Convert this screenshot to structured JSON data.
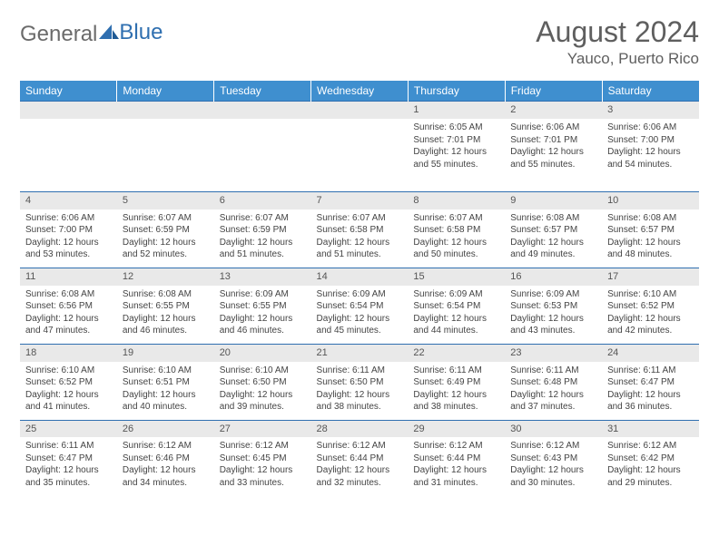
{
  "logo": {
    "text_gray": "General",
    "text_blue": "Blue"
  },
  "header": {
    "month": "August 2024",
    "location": "Yauco, Puerto Rico"
  },
  "colors": {
    "header_bg": "#3f8fcf",
    "header_text": "#ffffff",
    "cell_border": "#2f6fb0",
    "daynum_bg": "#e9e9e9",
    "body_text": "#444444",
    "logo_gray": "#6b6b6b",
    "logo_blue": "#2f6fb0",
    "title_color": "#5f5f5f"
  },
  "day_names": [
    "Sunday",
    "Monday",
    "Tuesday",
    "Wednesday",
    "Thursday",
    "Friday",
    "Saturday"
  ],
  "weeks": [
    [
      {
        "n": "",
        "sr": "",
        "ss": "",
        "dl": ""
      },
      {
        "n": "",
        "sr": "",
        "ss": "",
        "dl": ""
      },
      {
        "n": "",
        "sr": "",
        "ss": "",
        "dl": ""
      },
      {
        "n": "",
        "sr": "",
        "ss": "",
        "dl": ""
      },
      {
        "n": "1",
        "sr": "Sunrise: 6:05 AM",
        "ss": "Sunset: 7:01 PM",
        "dl": "Daylight: 12 hours and 55 minutes."
      },
      {
        "n": "2",
        "sr": "Sunrise: 6:06 AM",
        "ss": "Sunset: 7:01 PM",
        "dl": "Daylight: 12 hours and 55 minutes."
      },
      {
        "n": "3",
        "sr": "Sunrise: 6:06 AM",
        "ss": "Sunset: 7:00 PM",
        "dl": "Daylight: 12 hours and 54 minutes."
      }
    ],
    [
      {
        "n": "4",
        "sr": "Sunrise: 6:06 AM",
        "ss": "Sunset: 7:00 PM",
        "dl": "Daylight: 12 hours and 53 minutes."
      },
      {
        "n": "5",
        "sr": "Sunrise: 6:07 AM",
        "ss": "Sunset: 6:59 PM",
        "dl": "Daylight: 12 hours and 52 minutes."
      },
      {
        "n": "6",
        "sr": "Sunrise: 6:07 AM",
        "ss": "Sunset: 6:59 PM",
        "dl": "Daylight: 12 hours and 51 minutes."
      },
      {
        "n": "7",
        "sr": "Sunrise: 6:07 AM",
        "ss": "Sunset: 6:58 PM",
        "dl": "Daylight: 12 hours and 51 minutes."
      },
      {
        "n": "8",
        "sr": "Sunrise: 6:07 AM",
        "ss": "Sunset: 6:58 PM",
        "dl": "Daylight: 12 hours and 50 minutes."
      },
      {
        "n": "9",
        "sr": "Sunrise: 6:08 AM",
        "ss": "Sunset: 6:57 PM",
        "dl": "Daylight: 12 hours and 49 minutes."
      },
      {
        "n": "10",
        "sr": "Sunrise: 6:08 AM",
        "ss": "Sunset: 6:57 PM",
        "dl": "Daylight: 12 hours and 48 minutes."
      }
    ],
    [
      {
        "n": "11",
        "sr": "Sunrise: 6:08 AM",
        "ss": "Sunset: 6:56 PM",
        "dl": "Daylight: 12 hours and 47 minutes."
      },
      {
        "n": "12",
        "sr": "Sunrise: 6:08 AM",
        "ss": "Sunset: 6:55 PM",
        "dl": "Daylight: 12 hours and 46 minutes."
      },
      {
        "n": "13",
        "sr": "Sunrise: 6:09 AM",
        "ss": "Sunset: 6:55 PM",
        "dl": "Daylight: 12 hours and 46 minutes."
      },
      {
        "n": "14",
        "sr": "Sunrise: 6:09 AM",
        "ss": "Sunset: 6:54 PM",
        "dl": "Daylight: 12 hours and 45 minutes."
      },
      {
        "n": "15",
        "sr": "Sunrise: 6:09 AM",
        "ss": "Sunset: 6:54 PM",
        "dl": "Daylight: 12 hours and 44 minutes."
      },
      {
        "n": "16",
        "sr": "Sunrise: 6:09 AM",
        "ss": "Sunset: 6:53 PM",
        "dl": "Daylight: 12 hours and 43 minutes."
      },
      {
        "n": "17",
        "sr": "Sunrise: 6:10 AM",
        "ss": "Sunset: 6:52 PM",
        "dl": "Daylight: 12 hours and 42 minutes."
      }
    ],
    [
      {
        "n": "18",
        "sr": "Sunrise: 6:10 AM",
        "ss": "Sunset: 6:52 PM",
        "dl": "Daylight: 12 hours and 41 minutes."
      },
      {
        "n": "19",
        "sr": "Sunrise: 6:10 AM",
        "ss": "Sunset: 6:51 PM",
        "dl": "Daylight: 12 hours and 40 minutes."
      },
      {
        "n": "20",
        "sr": "Sunrise: 6:10 AM",
        "ss": "Sunset: 6:50 PM",
        "dl": "Daylight: 12 hours and 39 minutes."
      },
      {
        "n": "21",
        "sr": "Sunrise: 6:11 AM",
        "ss": "Sunset: 6:50 PM",
        "dl": "Daylight: 12 hours and 38 minutes."
      },
      {
        "n": "22",
        "sr": "Sunrise: 6:11 AM",
        "ss": "Sunset: 6:49 PM",
        "dl": "Daylight: 12 hours and 38 minutes."
      },
      {
        "n": "23",
        "sr": "Sunrise: 6:11 AM",
        "ss": "Sunset: 6:48 PM",
        "dl": "Daylight: 12 hours and 37 minutes."
      },
      {
        "n": "24",
        "sr": "Sunrise: 6:11 AM",
        "ss": "Sunset: 6:47 PM",
        "dl": "Daylight: 12 hours and 36 minutes."
      }
    ],
    [
      {
        "n": "25",
        "sr": "Sunrise: 6:11 AM",
        "ss": "Sunset: 6:47 PM",
        "dl": "Daylight: 12 hours and 35 minutes."
      },
      {
        "n": "26",
        "sr": "Sunrise: 6:12 AM",
        "ss": "Sunset: 6:46 PM",
        "dl": "Daylight: 12 hours and 34 minutes."
      },
      {
        "n": "27",
        "sr": "Sunrise: 6:12 AM",
        "ss": "Sunset: 6:45 PM",
        "dl": "Daylight: 12 hours and 33 minutes."
      },
      {
        "n": "28",
        "sr": "Sunrise: 6:12 AM",
        "ss": "Sunset: 6:44 PM",
        "dl": "Daylight: 12 hours and 32 minutes."
      },
      {
        "n": "29",
        "sr": "Sunrise: 6:12 AM",
        "ss": "Sunset: 6:44 PM",
        "dl": "Daylight: 12 hours and 31 minutes."
      },
      {
        "n": "30",
        "sr": "Sunrise: 6:12 AM",
        "ss": "Sunset: 6:43 PM",
        "dl": "Daylight: 12 hours and 30 minutes."
      },
      {
        "n": "31",
        "sr": "Sunrise: 6:12 AM",
        "ss": "Sunset: 6:42 PM",
        "dl": "Daylight: 12 hours and 29 minutes."
      }
    ]
  ]
}
